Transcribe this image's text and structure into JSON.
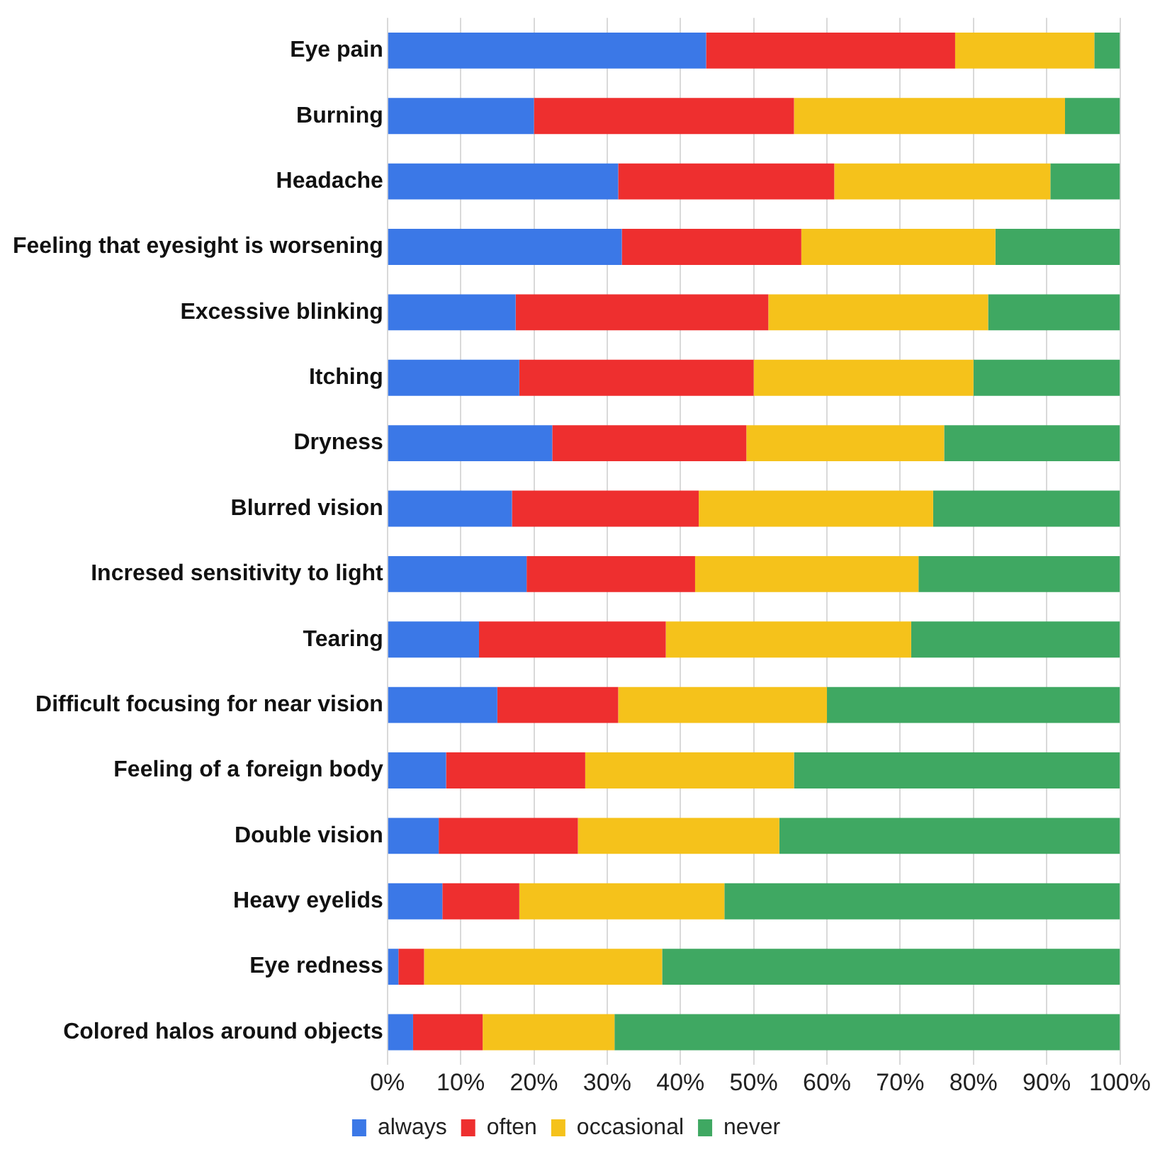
{
  "chart_data": {
    "type": "bar",
    "orientation": "horizontal",
    "stacked": true,
    "categories": [
      "Eye pain",
      "Burning",
      "Headache",
      "Feeling that eyesight is worsening",
      "Excessive blinking",
      "Itching",
      "Dryness",
      "Blurred vision",
      "Incresed sensitivity to light",
      "Tearing",
      "Difficult focusing for near vision",
      "Feeling of a foreign body",
      "Double vision",
      "Heavy eyelids",
      "Eye redness",
      "Colored halos around objects"
    ],
    "series": [
      {
        "name": "always",
        "color": "#3b78e7",
        "values": [
          43.5,
          20,
          31.5,
          32,
          17.5,
          18,
          22.5,
          17,
          19,
          12.5,
          15,
          8,
          7,
          7.5,
          1.5,
          3.5
        ]
      },
      {
        "name": "often",
        "color": "#ee2f2f",
        "values": [
          34,
          35.5,
          29.5,
          24.5,
          34.5,
          32,
          26.5,
          25.5,
          23,
          25.5,
          16.5,
          19,
          19,
          10.5,
          3.5,
          9.5
        ]
      },
      {
        "name": "occasional",
        "color": "#f5c21b",
        "values": [
          19,
          37,
          29.5,
          26.5,
          30,
          30,
          27,
          32,
          30.5,
          33.5,
          28.5,
          28.5,
          27.5,
          28,
          32.5,
          18
        ]
      },
      {
        "name": "never",
        "color": "#3fa862",
        "values": [
          3.5,
          7.5,
          9.5,
          17,
          18,
          20,
          24,
          25.5,
          27.5,
          28.5,
          40,
          44.5,
          46.5,
          54,
          62.5,
          69
        ]
      }
    ],
    "xlim": [
      0,
      100
    ],
    "xticks": [
      {
        "value": 0,
        "label": "0%"
      },
      {
        "value": 10,
        "label": "10%"
      },
      {
        "value": 20,
        "label": "20%"
      },
      {
        "value": 30,
        "label": "30%"
      },
      {
        "value": 40,
        "label": "40%"
      },
      {
        "value": 50,
        "label": "50%"
      },
      {
        "value": 60,
        "label": "60%"
      },
      {
        "value": 70,
        "label": "70%"
      },
      {
        "value": 80,
        "label": "80%"
      },
      {
        "value": 90,
        "label": "90%"
      },
      {
        "value": 100,
        "label": "100%"
      }
    ],
    "grid": "x",
    "legend": "bottom"
  }
}
